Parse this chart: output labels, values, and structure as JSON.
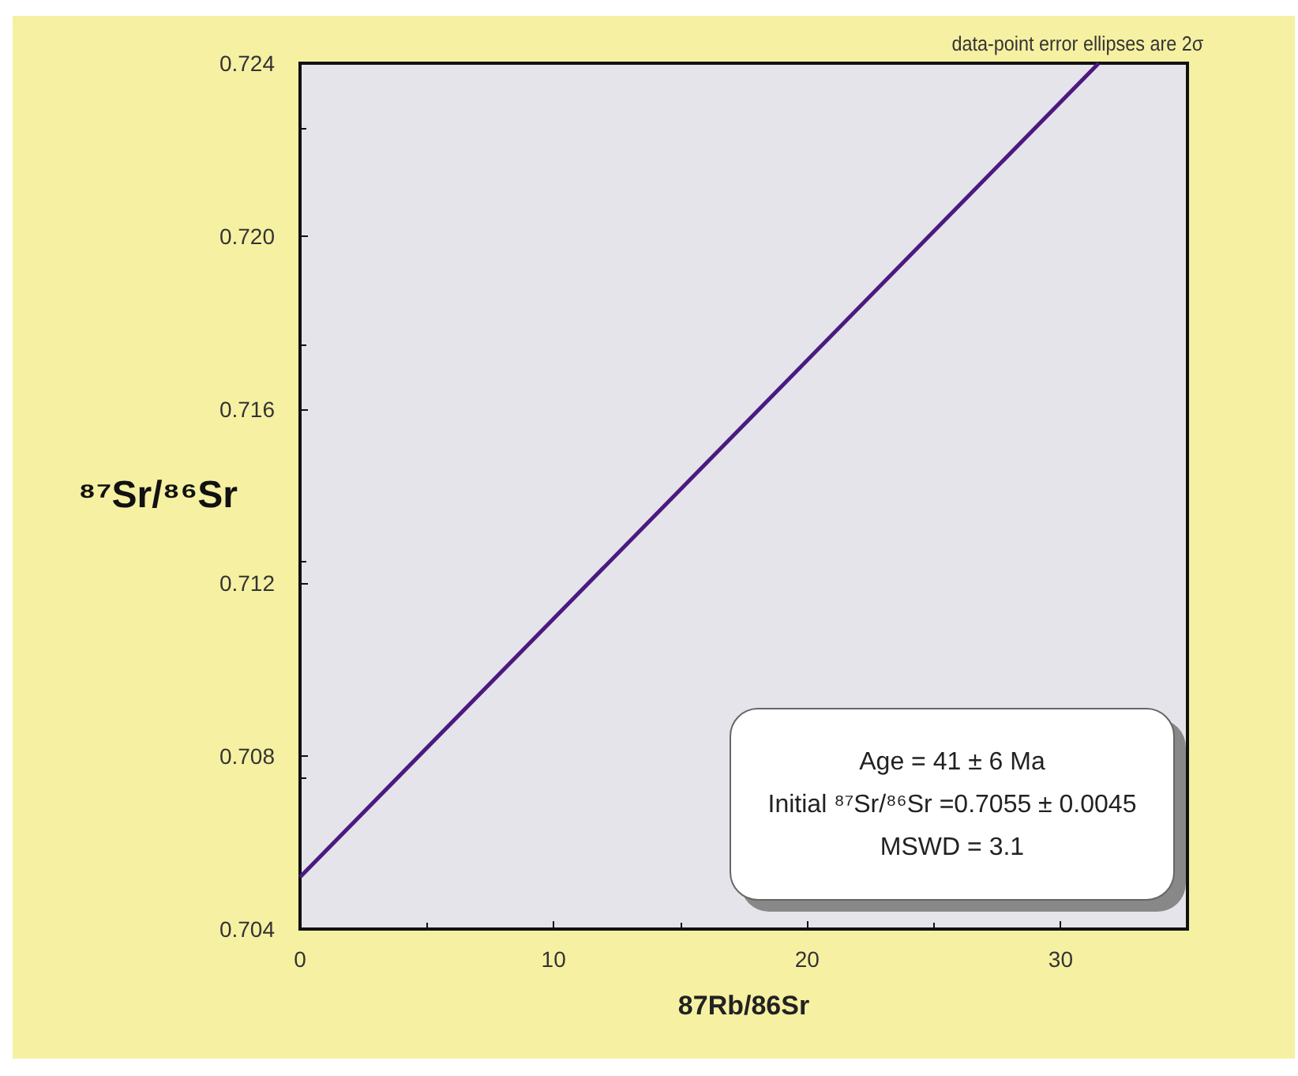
{
  "chart_data": {
    "type": "line",
    "xlabel": "87Rb/86Sr",
    "ylabel": "⁸⁷Sr/⁸⁶Sr",
    "series": [
      {
        "color": "#4b1a80",
        "x": [
          0,
          31.5
        ],
        "values": [
          0.7052,
          0.724
        ]
      }
    ],
    "xlim": [
      0,
      35
    ],
    "xticks": [
      0,
      10,
      20,
      30
    ],
    "ylim": [
      0.704,
      0.724
    ],
    "yticks": [
      0.704,
      0.708,
      0.712,
      0.716,
      {
        "value": 0.72,
        "label": "0.720"
      },
      0.724
    ],
    "grid": false,
    "marker": "none",
    "line_style": "solid",
    "annotations": [
      "data-point error ellipses are 2σ",
      "Age = 41 ± 6 Ma",
      "Initial ⁸⁷Sr/⁸⁶Sr =0.7055 ± 0.0045",
      "MSWD = 3.1"
    ]
  }
}
